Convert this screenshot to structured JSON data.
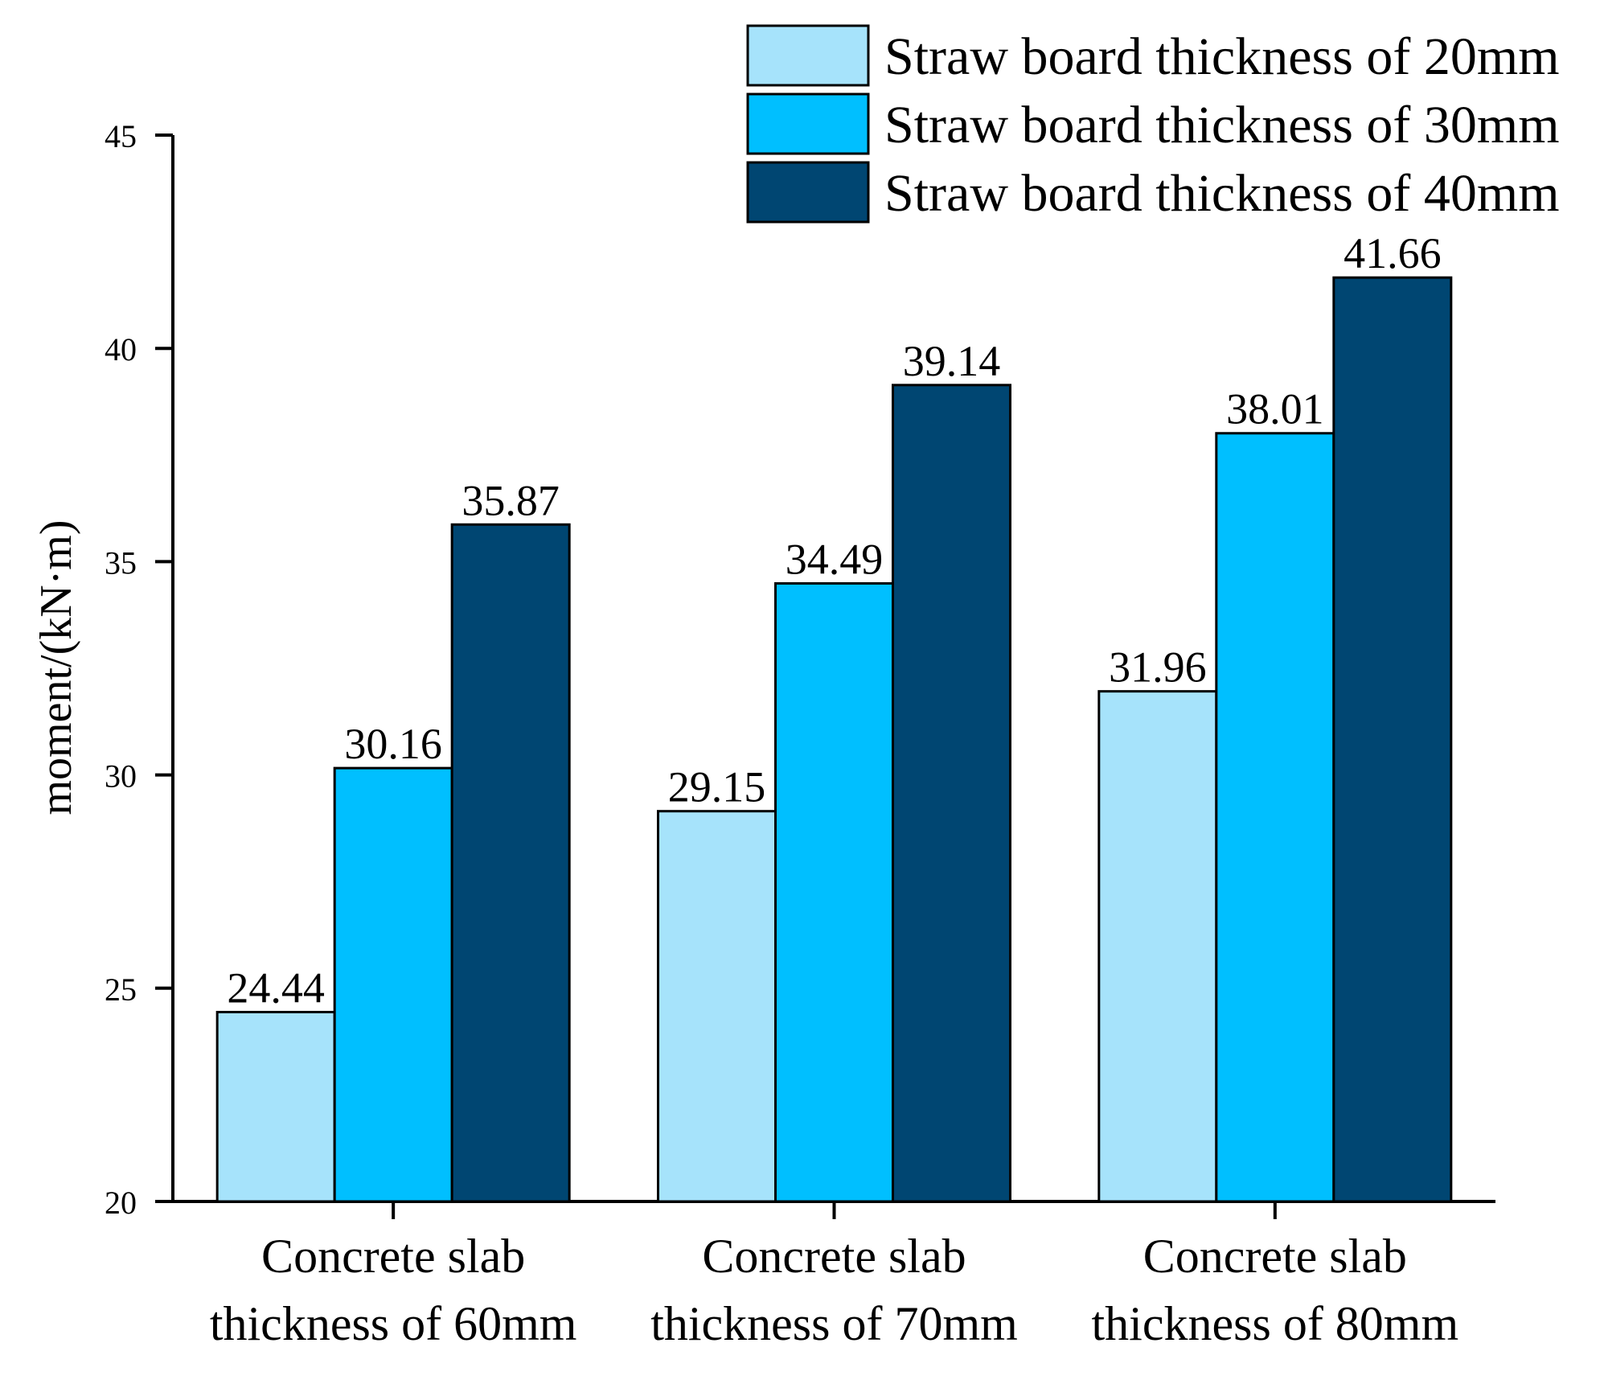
{
  "chart_data": {
    "type": "bar",
    "title": "",
    "xlabel": "",
    "ylabel": "moment/(kN·m)",
    "ylim": [
      20,
      45
    ],
    "yticks": [
      20,
      25,
      30,
      35,
      40,
      45
    ],
    "categories": [
      [
        "Concrete slab",
        "thickness of 60mm"
      ],
      [
        "Concrete slab",
        "thickness of 70mm"
      ],
      [
        "Concrete slab",
        "thickness of 80mm"
      ]
    ],
    "series": [
      {
        "name": "Straw board thickness of 20mm",
        "color": "#a6e3fb",
        "values": [
          24.44,
          29.15,
          31.96
        ],
        "labels": [
          "24.44",
          "29.15",
          "31.96"
        ]
      },
      {
        "name": "Straw board thickness of 30mm",
        "color": "#00bfff",
        "values": [
          30.16,
          34.49,
          38.01
        ],
        "labels": [
          "30.16",
          "34.49",
          "38.01"
        ]
      },
      {
        "name": "Straw board thickness of 40mm",
        "color": "#004672",
        "values": [
          35.87,
          39.14,
          41.66
        ],
        "labels": [
          "35.87",
          "39.14",
          "41.66"
        ]
      }
    ],
    "grid": false,
    "legend_position": "top-right"
  }
}
